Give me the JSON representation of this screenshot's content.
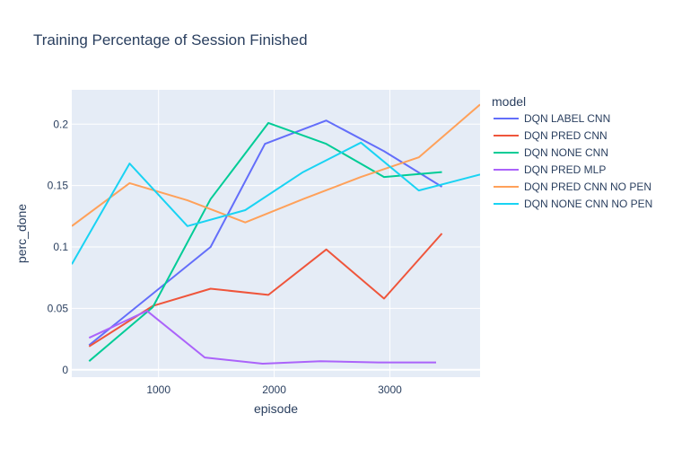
{
  "chart_data": {
    "type": "line",
    "title": "Training Percentage of Session Finished",
    "xlabel": "episode",
    "ylabel": "perc_done",
    "xlim": [
      250,
      3780
    ],
    "ylim": [
      -0.006,
      0.228
    ],
    "xticks": [
      1000,
      2000,
      3000
    ],
    "yticks": [
      0,
      0.05,
      0.1,
      0.15,
      0.2
    ],
    "grid": true,
    "legend": {
      "title": "model",
      "placement": "right"
    },
    "series": [
      {
        "name": "DQN LABEL CNN",
        "color": "#636efa",
        "x": [
          400,
          1450,
          1920,
          2450,
          2950,
          3450
        ],
        "y": [
          0.02,
          0.1,
          0.184,
          0.203,
          0.178,
          0.149
        ]
      },
      {
        "name": "DQN PRED CNN",
        "color": "#ef553b",
        "x": [
          400,
          950,
          1450,
          1950,
          2450,
          2950,
          3450
        ],
        "y": [
          0.019,
          0.052,
          0.066,
          0.061,
          0.098,
          0.058,
          0.111
        ]
      },
      {
        "name": "DQN NONE CNN",
        "color": "#00cc96",
        "x": [
          400,
          950,
          1450,
          1950,
          2450,
          2950,
          3450
        ],
        "y": [
          0.007,
          0.051,
          0.139,
          0.201,
          0.184,
          0.157,
          0.161
        ]
      },
      {
        "name": "DQN PRED MLP",
        "color": "#ab63fa",
        "x": [
          400,
          900,
          1400,
          1900,
          2400,
          2900,
          3400
        ],
        "y": [
          0.026,
          0.048,
          0.01,
          0.005,
          0.007,
          0.006,
          0.006
        ]
      },
      {
        "name": "DQN PRED CNN NO PEN",
        "color": "#ffa15a",
        "x": [
          250,
          750,
          1250,
          1750,
          2250,
          2750,
          3250,
          3780
        ],
        "y": [
          0.117,
          0.152,
          0.138,
          0.12,
          0.139,
          0.157,
          0.173,
          0.216
        ]
      },
      {
        "name": "DQN NONE CNN NO PEN",
        "color": "#19d3f3",
        "x": [
          250,
          750,
          1250,
          1750,
          2250,
          2750,
          3250,
          3780
        ],
        "y": [
          0.086,
          0.168,
          0.117,
          0.13,
          0.161,
          0.185,
          0.146,
          0.159
        ]
      }
    ]
  }
}
